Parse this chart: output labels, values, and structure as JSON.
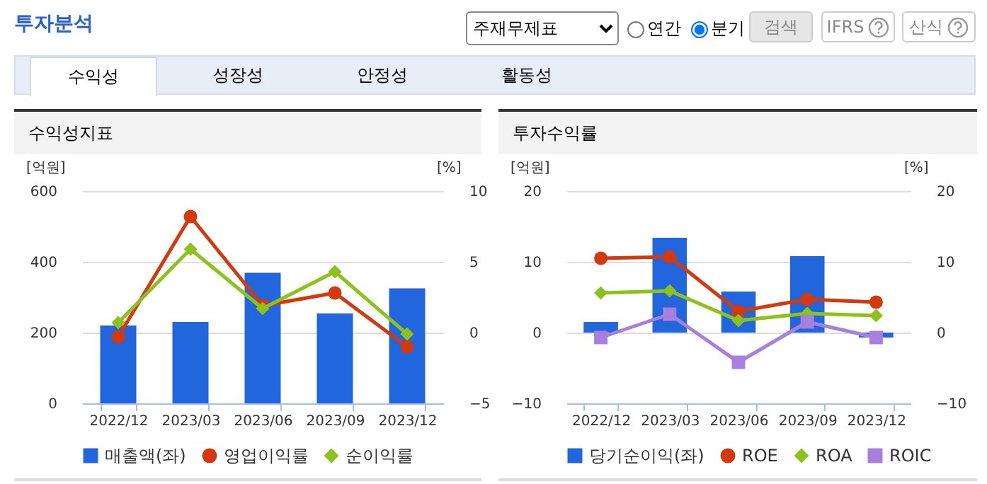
{
  "chart_data": [
    {
      "type": "other",
      "title": "투자분석",
      "annotations": [
        "주재무제표",
        "연간",
        "분기",
        "검색",
        "IFRS",
        "산식",
        "수익성",
        "성장성",
        "안정성",
        "활동성"
      ]
    },
    {
      "type": "bar",
      "title": "수익성지표",
      "ylabel": "[억원]",
      "y2label": "[%]",
      "categories": [
        "2022/12",
        "2023/03",
        "2023/06",
        "2023/09",
        "2023/12"
      ],
      "ylim": [
        0,
        600
      ],
      "yticks": [
        0,
        200,
        400,
        600
      ],
      "y2lim": [
        -5,
        10
      ],
      "y2ticks": [
        -5,
        0,
        5,
        10
      ],
      "grid": "y",
      "legend": "bottom",
      "series": [
        {
          "name": "매출액(좌)",
          "type": "bar",
          "color": "#2266dd",
          "values": [
            220,
            230,
            369,
            254,
            325
          ]
        },
        {
          "name": "영업이익률",
          "type": "line",
          "axis": "y2",
          "color": "#d4380d",
          "marker": "circle",
          "values": [
            -0.3,
            8.2,
            1.9,
            2.8,
            -1.0
          ]
        },
        {
          "name": "순이익률",
          "type": "line",
          "axis": "y2",
          "color": "#8cc21c",
          "marker": "diamond",
          "values": [
            0.7,
            5.9,
            1.7,
            4.3,
            -0.1
          ]
        }
      ]
    },
    {
      "type": "bar",
      "title": "투자수익률",
      "ylabel": "[억원]",
      "y2label": "[%]",
      "categories": [
        "2022/12",
        "2023/03",
        "2023/06",
        "2023/09",
        "2023/12"
      ],
      "ylim": [
        -10,
        20
      ],
      "yticks": [
        -10,
        0,
        10,
        20
      ],
      "y2lim": [
        -10,
        20
      ],
      "y2ticks": [
        -10,
        0,
        10,
        20
      ],
      "grid": "y",
      "legend": "bottom",
      "series": [
        {
          "name": "당기순이익(좌)",
          "type": "bar",
          "color": "#2266dd",
          "values": [
            1.5,
            13.4,
            5.8,
            10.8,
            -0.7
          ]
        },
        {
          "name": "ROE",
          "type": "line",
          "axis": "y2",
          "color": "#d4380d",
          "marker": "circle",
          "values": [
            10.5,
            10.7,
            3.0,
            4.7,
            4.3
          ]
        },
        {
          "name": "ROA",
          "type": "line",
          "axis": "y2",
          "color": "#8cc21c",
          "marker": "diamond",
          "values": [
            5.6,
            5.9,
            1.7,
            2.7,
            2.4
          ]
        },
        {
          "name": "ROIC",
          "type": "line",
          "axis": "y2",
          "color": "#a67fdf",
          "marker": "square",
          "values": [
            -0.7,
            2.6,
            -4.2,
            1.5,
            -0.7
          ]
        }
      ]
    }
  ]
}
